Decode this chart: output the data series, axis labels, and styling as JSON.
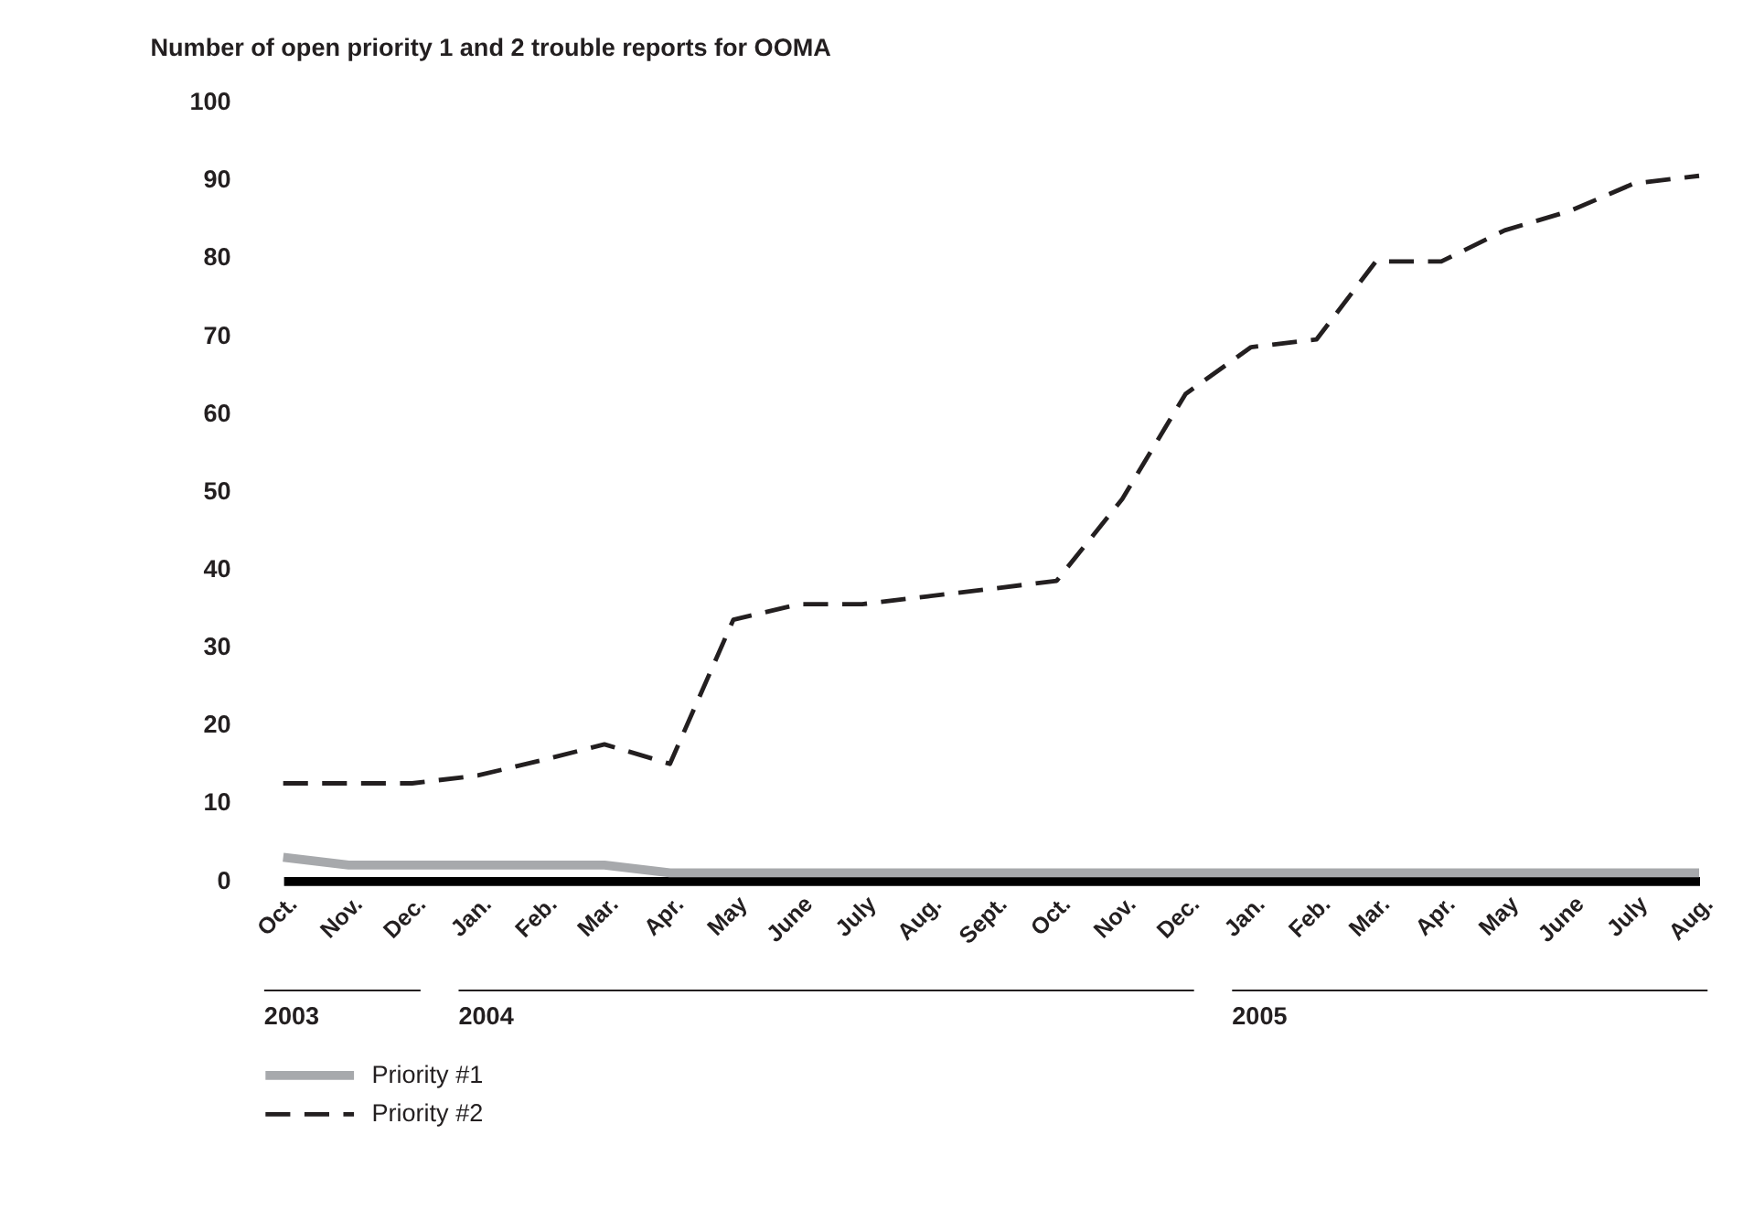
{
  "chart_data": {
    "type": "line",
    "title": "Number of open priority 1 and 2 trouble reports for OOMA",
    "x": [
      "2003-10",
      "2003-11",
      "2003-12",
      "2004-01",
      "2004-02",
      "2004-03",
      "2004-04",
      "2004-05",
      "2004-06",
      "2004-07",
      "2004-08",
      "2004-09",
      "2004-10",
      "2004-11",
      "2004-12",
      "2005-01",
      "2005-02",
      "2005-03",
      "2005-04",
      "2005-05",
      "2005-06",
      "2005-07",
      "2005-08"
    ],
    "xlim": [
      "2003-10",
      "2005-08"
    ],
    "xticks": [
      {
        "value": "2003-10",
        "label": "Oct."
      },
      {
        "value": "2003-11",
        "label": "Nov."
      },
      {
        "value": "2003-12",
        "label": "Dec."
      },
      {
        "value": "2004-01",
        "label": "Jan."
      },
      {
        "value": "2004-02",
        "label": "Feb."
      },
      {
        "value": "2004-03",
        "label": "Mar."
      },
      {
        "value": "2004-04",
        "label": "Apr."
      },
      {
        "value": "2004-05",
        "label": "May"
      },
      {
        "value": "2004-06",
        "label": "June"
      },
      {
        "value": "2004-07",
        "label": "July"
      },
      {
        "value": "2004-08",
        "label": "Aug."
      },
      {
        "value": "2004-09",
        "label": "Sept."
      },
      {
        "value": "2004-10",
        "label": "Oct."
      },
      {
        "value": "2004-11",
        "label": "Nov."
      },
      {
        "value": "2004-12",
        "label": "Dec."
      },
      {
        "value": "2005-01",
        "label": "Jan."
      },
      {
        "value": "2005-02",
        "label": "Feb."
      },
      {
        "value": "2005-03",
        "label": "Mar."
      },
      {
        "value": "2005-04",
        "label": "Apr."
      },
      {
        "value": "2005-05",
        "label": "May"
      },
      {
        "value": "2005-06",
        "label": "June"
      },
      {
        "value": "2005-07",
        "label": "July"
      },
      {
        "value": "2005-08",
        "label": "Aug."
      }
    ],
    "series": [
      {
        "name": "Priority #1",
        "color": "#a7a9ac",
        "line_style": "solid",
        "values": [
          3,
          2,
          2,
          2,
          2,
          2,
          1,
          1,
          1,
          1,
          1,
          1,
          1,
          1,
          1,
          1,
          1,
          1,
          1,
          1,
          1,
          1,
          1
        ]
      },
      {
        "name": "Priority #2",
        "color": "#231f20",
        "line_style": "dashed",
        "values": [
          12.5,
          12.5,
          12.5,
          13.5,
          15.5,
          17.5,
          15,
          33.5,
          35.5,
          35.5,
          36.5,
          37.5,
          38.5,
          49,
          62.5,
          68.5,
          69.5,
          79.5,
          79.5,
          83.5,
          86,
          89.5,
          90.5
        ]
      }
    ],
    "annotations": [
      "2003",
      "2004",
      "2005"
    ],
    "ylim": [
      0,
      100
    ],
    "yticks": [
      0,
      10,
      20,
      30,
      40,
      50,
      60,
      70,
      80,
      90,
      100
    ],
    "grid": false,
    "legend": "bottom",
    "marker": "none"
  }
}
